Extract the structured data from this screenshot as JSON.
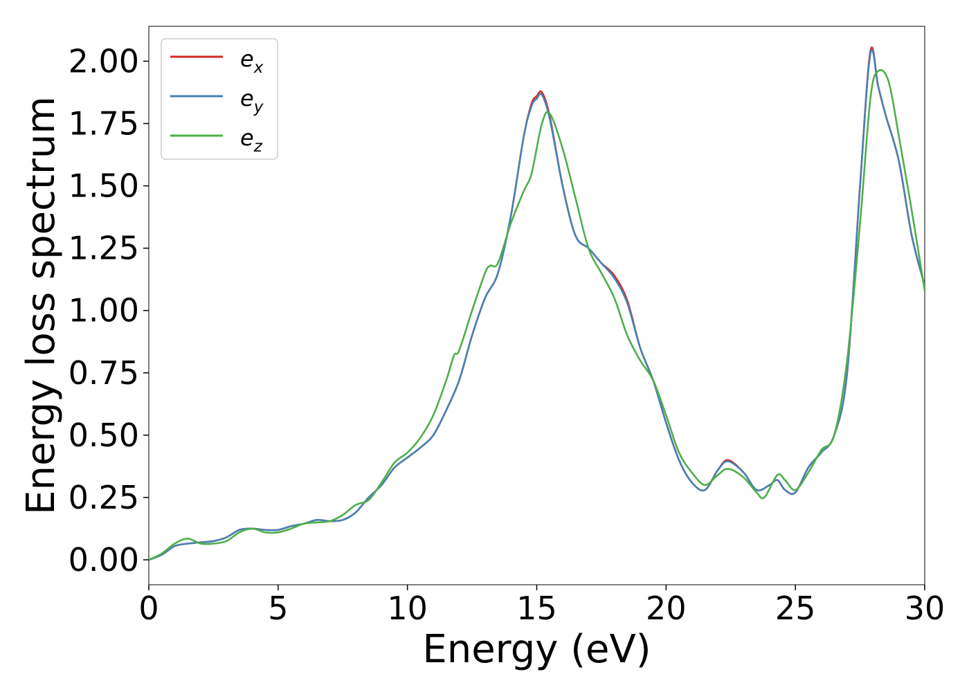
{
  "chart_data": {
    "type": "line",
    "title": "",
    "xlabel": "Energy (eV)",
    "ylabel": "Energy loss spectrum",
    "xlim": [
      0,
      30
    ],
    "ylim": [
      -0.1,
      2.14
    ],
    "xticks": [
      0,
      5,
      10,
      15,
      20,
      25,
      30
    ],
    "xtick_labels": [
      "0",
      "5",
      "10",
      "15",
      "20",
      "25",
      "30"
    ],
    "yticks": [
      0,
      0.25,
      0.5,
      0.75,
      1.0,
      1.25,
      1.5,
      1.75,
      2.0
    ],
    "ytick_labels": [
      "0.00",
      "0.25",
      "0.50",
      "0.75",
      "1.00",
      "1.25",
      "1.50",
      "1.75",
      "2.00"
    ],
    "grid": false,
    "legend_position": "top-left",
    "series": [
      {
        "name": "e_x",
        "legend_base": "e",
        "legend_sub": "x",
        "color": "#d62728",
        "x": [
          0,
          0.5,
          1,
          1.5,
          2,
          2.5,
          3,
          3.5,
          4,
          4.5,
          5,
          5.5,
          6,
          6.5,
          7,
          7.5,
          8,
          8.5,
          9,
          9.5,
          10,
          10.5,
          11,
          11.5,
          12,
          12.5,
          13,
          13.5,
          14,
          14.5,
          14.8,
          15,
          15.2,
          15.5,
          16,
          16.5,
          17,
          17.5,
          18,
          18.5,
          19,
          19.5,
          20,
          20.5,
          21,
          21.5,
          22,
          22.4,
          23,
          23.5,
          24,
          24.3,
          24.6,
          25,
          25.5,
          26,
          26.5,
          27,
          27.5,
          27.9,
          28.2,
          28.5,
          29,
          29.5,
          30
        ],
        "y": [
          0,
          0.02,
          0.055,
          0.065,
          0.07,
          0.075,
          0.09,
          0.12,
          0.125,
          0.12,
          0.12,
          0.135,
          0.145,
          0.16,
          0.155,
          0.16,
          0.19,
          0.25,
          0.3,
          0.37,
          0.41,
          0.45,
          0.5,
          0.6,
          0.72,
          0.9,
          1.05,
          1.15,
          1.38,
          1.7,
          1.83,
          1.86,
          1.875,
          1.78,
          1.5,
          1.3,
          1.25,
          1.19,
          1.14,
          1.04,
          0.85,
          0.72,
          0.55,
          0.4,
          0.31,
          0.28,
          0.36,
          0.4,
          0.35,
          0.28,
          0.3,
          0.32,
          0.28,
          0.27,
          0.37,
          0.43,
          0.5,
          0.75,
          1.5,
          2.04,
          1.9,
          1.78,
          1.6,
          1.3,
          1.1
        ]
      },
      {
        "name": "e_y",
        "legend_base": "e",
        "legend_sub": "y",
        "color": "#4682b4",
        "x": [
          0,
          0.5,
          1,
          1.5,
          2,
          2.5,
          3,
          3.5,
          4,
          4.5,
          5,
          5.5,
          6,
          6.5,
          7,
          7.5,
          8,
          8.5,
          9,
          9.5,
          10,
          10.5,
          11,
          11.5,
          12,
          12.5,
          13,
          13.5,
          14,
          14.5,
          14.8,
          15,
          15.2,
          15.5,
          16,
          16.5,
          17,
          17.5,
          18,
          18.5,
          19,
          19.5,
          20,
          20.5,
          21,
          21.5,
          22,
          22.4,
          23,
          23.5,
          24,
          24.3,
          24.6,
          25,
          25.5,
          26,
          26.5,
          27,
          27.5,
          27.9,
          28.2,
          28.5,
          29,
          29.5,
          30
        ],
        "y": [
          0,
          0.02,
          0.055,
          0.065,
          0.07,
          0.075,
          0.09,
          0.12,
          0.125,
          0.12,
          0.12,
          0.135,
          0.145,
          0.16,
          0.155,
          0.16,
          0.19,
          0.25,
          0.3,
          0.37,
          0.41,
          0.45,
          0.5,
          0.6,
          0.72,
          0.9,
          1.05,
          1.15,
          1.38,
          1.7,
          1.82,
          1.85,
          1.865,
          1.77,
          1.5,
          1.3,
          1.25,
          1.19,
          1.13,
          1.03,
          0.85,
          0.72,
          0.55,
          0.4,
          0.31,
          0.28,
          0.36,
          0.395,
          0.35,
          0.28,
          0.3,
          0.32,
          0.28,
          0.27,
          0.37,
          0.43,
          0.5,
          0.75,
          1.5,
          2.03,
          1.9,
          1.78,
          1.6,
          1.3,
          1.1
        ]
      },
      {
        "name": "e_z",
        "legend_base": "e",
        "legend_sub": "z",
        "color": "#4daf4a",
        "x": [
          0,
          0.5,
          1,
          1.5,
          2,
          2.5,
          3,
          3.5,
          4,
          4.5,
          5,
          5.5,
          6,
          6.5,
          7,
          7.5,
          8,
          8.5,
          9,
          9.5,
          10,
          10.5,
          11,
          11.5,
          11.8,
          12,
          12.5,
          13,
          13.2,
          13.5,
          14,
          14.5,
          14.8,
          15.2,
          15.5,
          16,
          16.5,
          17,
          17.5,
          18,
          18.5,
          19,
          19.5,
          20,
          20.5,
          21,
          21.5,
          22,
          22.4,
          23,
          23.5,
          23.8,
          24.3,
          24.6,
          25,
          25.5,
          26,
          26.5,
          27,
          27.5,
          27.9,
          28.2,
          28.6,
          29,
          29.5,
          30
        ],
        "y": [
          0,
          0.025,
          0.065,
          0.085,
          0.065,
          0.065,
          0.075,
          0.11,
          0.125,
          0.11,
          0.11,
          0.125,
          0.145,
          0.15,
          0.155,
          0.18,
          0.22,
          0.24,
          0.31,
          0.39,
          0.43,
          0.49,
          0.58,
          0.72,
          0.82,
          0.84,
          1.0,
          1.15,
          1.18,
          1.19,
          1.35,
          1.48,
          1.55,
          1.75,
          1.79,
          1.65,
          1.45,
          1.25,
          1.15,
          1.05,
          0.9,
          0.8,
          0.72,
          0.58,
          0.43,
          0.35,
          0.3,
          0.34,
          0.365,
          0.33,
          0.27,
          0.25,
          0.34,
          0.32,
          0.28,
          0.35,
          0.44,
          0.5,
          0.8,
          1.35,
          1.85,
          1.96,
          1.92,
          1.7,
          1.4,
          1.08
        ]
      }
    ]
  }
}
